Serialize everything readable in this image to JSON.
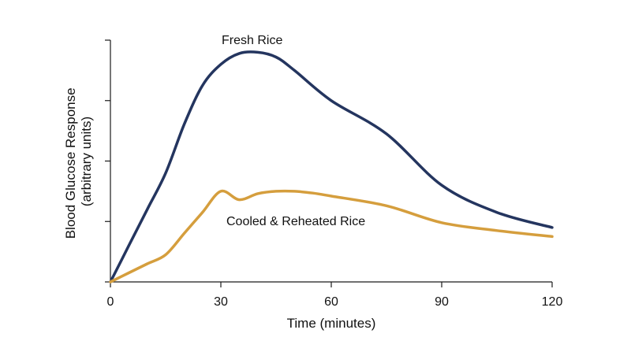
{
  "chart_data": {
    "type": "line",
    "title": "",
    "xlabel": "Time (minutes)",
    "ylabel_lines": [
      "Blood Glucose Response",
      "(arbitrary units)"
    ],
    "xlim": [
      0,
      120
    ],
    "ylim": [
      0,
      4
    ],
    "x_ticks": [
      0,
      30,
      60,
      90,
      120
    ],
    "y_ticks": [
      0,
      1,
      2,
      3,
      4
    ],
    "show_y_tick_labels": false,
    "grid": false,
    "legend": "none",
    "series": [
      {
        "name": "Fresh Rice",
        "color": "#24355f",
        "x": [
          0,
          5,
          10,
          15,
          20,
          25,
          30,
          35,
          40,
          45,
          50,
          60,
          75,
          90,
          105,
          120
        ],
        "y": [
          0,
          0.6,
          1.2,
          1.8,
          2.6,
          3.25,
          3.6,
          3.78,
          3.8,
          3.72,
          3.5,
          3.0,
          2.45,
          1.6,
          1.15,
          0.9
        ]
      },
      {
        "name": "Cooled & Reheated Rice",
        "color": "#d59e3d",
        "x": [
          0,
          5,
          10,
          15,
          20,
          25,
          30,
          35,
          40,
          45,
          50,
          55,
          60,
          75,
          90,
          105,
          120
        ],
        "y": [
          0,
          0.15,
          0.3,
          0.45,
          0.8,
          1.15,
          1.5,
          1.36,
          1.46,
          1.5,
          1.5,
          1.47,
          1.42,
          1.26,
          0.98,
          0.85,
          0.75
        ]
      }
    ]
  }
}
